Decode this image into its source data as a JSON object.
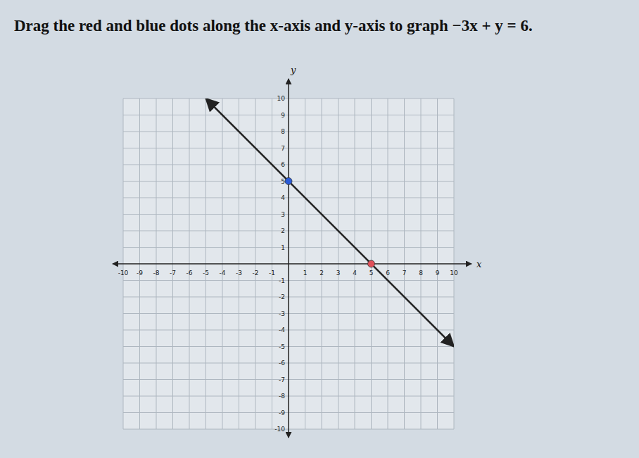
{
  "chart_data": {
    "type": "line",
    "title": "Drag the red and blue dots along the x-axis and y-axis to graph −3x + y = 6.",
    "x_label": "x",
    "y_label": "y",
    "x": [
      -5,
      10
    ],
    "values": [
      10,
      -5
    ],
    "color": "#222222",
    "points": [
      {
        "x": 0,
        "y": 5,
        "color": "#2a5bd7"
      },
      {
        "x": 5,
        "y": 0,
        "color": "#e0505a"
      }
    ],
    "xlim": [
      -10,
      10
    ],
    "ylim": [
      -10,
      10
    ],
    "xticks": [
      -10,
      -9,
      -8,
      -7,
      -6,
      -5,
      -4,
      -3,
      -2,
      -1,
      1,
      2,
      3,
      4,
      5,
      6,
      7,
      8,
      9,
      10
    ],
    "yticks": [
      -10,
      -9,
      -8,
      -7,
      -6,
      -5,
      -4,
      -3,
      -2,
      -1,
      1,
      2,
      3,
      4,
      5,
      6,
      7,
      8,
      9,
      10
    ],
    "grid": true
  }
}
